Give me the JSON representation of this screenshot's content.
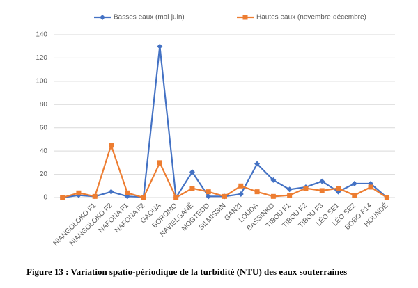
{
  "chart_data": {
    "type": "line",
    "caption": "Figure 13 : Variation spatio-périodique de la turbidité (NTU) des eaux souterraines",
    "categories": [
      null,
      null,
      "NIANGOLOKO F1",
      "NIANGOLOKO F2",
      "NAFONA F1",
      "NAFONA F2",
      "GAOUA",
      "BOROMO",
      "NAVIELGANÉ",
      "MOGTEDO",
      "SILMISSIN",
      "GANZI",
      "LOUDA",
      "BASSINKO",
      "TIBOU F1",
      "TIBOU F2",
      "TIBOU F3",
      "LÉO SE1",
      "LÉO SE2",
      "BOBO P14",
      "HOUNDÉ"
    ],
    "series": [
      {
        "name": "Basses eaux (mai-juin)",
        "color": "#4472c4",
        "marker": "diamond",
        "values": [
          0,
          2,
          1,
          5,
          1,
          0.5,
          130,
          0,
          22,
          1,
          1,
          3,
          29,
          15,
          7,
          9,
          14,
          5,
          12,
          12,
          0
        ]
      },
      {
        "name": "Hautes eaux (novembre-décembre)",
        "color": "#ed7d31",
        "marker": "square",
        "values": [
          0,
          4,
          1,
          45,
          4,
          0,
          30,
          0,
          8,
          5,
          1,
          10,
          5,
          1,
          2,
          8,
          6,
          8,
          2,
          9,
          0
        ]
      }
    ],
    "ylim": [
      0,
      140
    ],
    "yticks": [
      0,
      20,
      40,
      60,
      80,
      100,
      120,
      140
    ],
    "grid": true,
    "legend": "top"
  }
}
